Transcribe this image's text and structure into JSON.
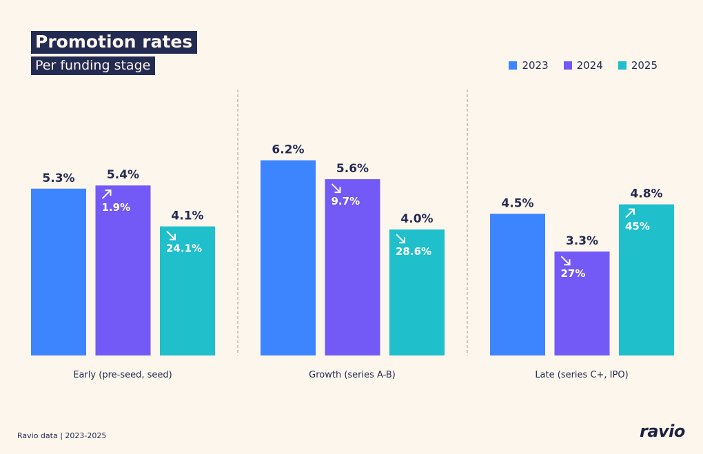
{
  "title": "Promotion rates",
  "subtitle": "Per funding stage",
  "footer": "Ravio data | 2023-2025",
  "logo": "ravio",
  "chart_data": {
    "type": "bar",
    "categories": [
      "Early (pre-seed, seed)",
      "Growth (series A-B)",
      "Late (series C+, IPO)"
    ],
    "series": [
      {
        "name": "2023",
        "color": "#3d85ff",
        "values": [
          5.3,
          6.2,
          4.5
        ],
        "changes": [
          null,
          null,
          null
        ],
        "directions": [
          null,
          null,
          null
        ]
      },
      {
        "name": "2024",
        "color": "#7359f5",
        "values": [
          5.4,
          5.6,
          3.3
        ],
        "changes": [
          "1.9%",
          "9.7%",
          "27%"
        ],
        "directions": [
          "up",
          "down",
          "down"
        ]
      },
      {
        "name": "2025",
        "color": "#1fbfcb",
        "values": [
          4.1,
          4.0,
          4.8
        ],
        "changes": [
          "24.1%",
          "28.6%",
          "45%"
        ],
        "directions": [
          "down",
          "down",
          "up"
        ]
      }
    ],
    "value_suffix": "%",
    "ylim": [
      0,
      8.5
    ],
    "grid": false,
    "legend": "top-right"
  }
}
